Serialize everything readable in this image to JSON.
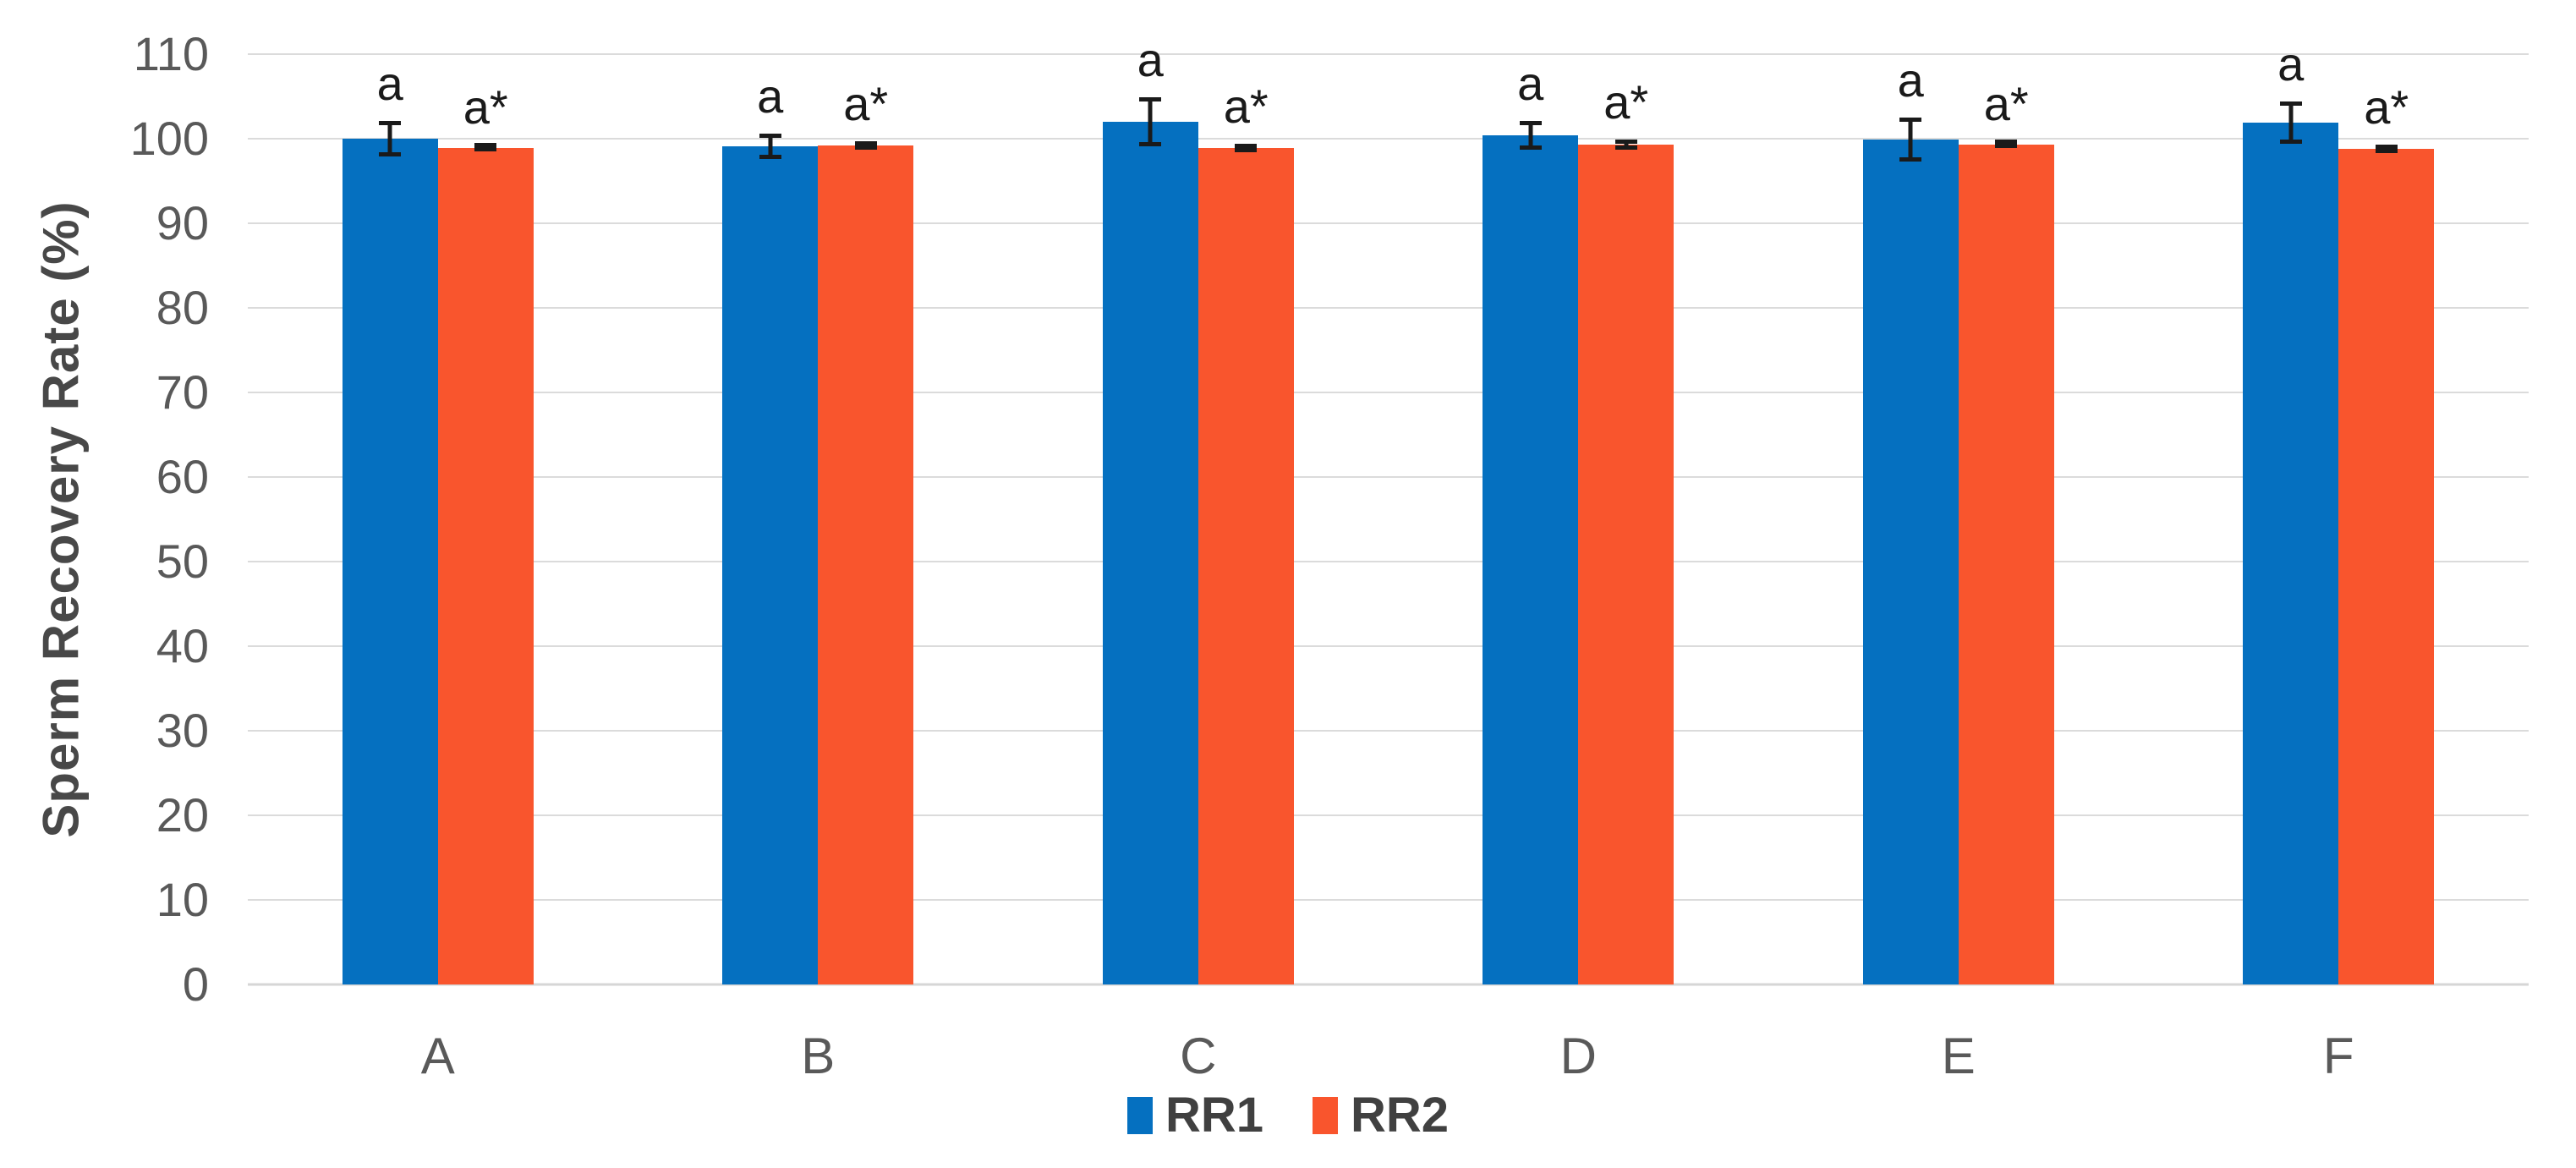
{
  "chart_data": {
    "type": "bar",
    "title": "",
    "ylabel": "Sperm Recovery Rate (%)",
    "xlabel": "",
    "ylim": [
      0,
      110
    ],
    "yticks": [
      0,
      10,
      20,
      30,
      40,
      50,
      60,
      70,
      80,
      90,
      100,
      110
    ],
    "grid": true,
    "legend_position": "bottom-center",
    "categories": [
      "A",
      "B",
      "C",
      "D",
      "E",
      "F"
    ],
    "series": [
      {
        "name": "RR1",
        "color": "#0570C0",
        "values": [
          100.0,
          99.1,
          102.0,
          100.4,
          99.9,
          101.9
        ],
        "errors": [
          2.1,
          1.5,
          2.9,
          1.7,
          2.6,
          2.5
        ],
        "annotations": [
          "a",
          "a",
          "a",
          "a",
          "a",
          "a"
        ]
      },
      {
        "name": "RR2",
        "color": "#F9552D",
        "values": [
          98.9,
          99.2,
          98.9,
          99.3,
          99.3,
          98.8
        ],
        "errors": [
          0.4,
          0.5,
          0.5,
          0.6,
          0.4,
          0.5
        ],
        "annotations": [
          "a*",
          "a*",
          "a*",
          "a*",
          "a*",
          "a*"
        ]
      }
    ],
    "style": {
      "gridline_color": "#dbdbdb",
      "axis_line_color": "#d6d6d6",
      "tick_label_color": "#595959",
      "axis_title_color": "#484848",
      "annotation_color": "#1a1a1a",
      "error_bar_color": "#1a1a1a",
      "legend_text_color": "#404040"
    }
  }
}
